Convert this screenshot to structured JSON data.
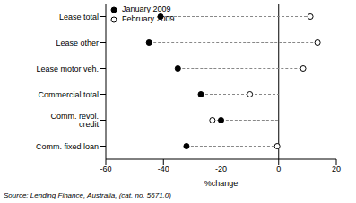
{
  "chart_data": {
    "type": "dot",
    "orientation": "horizontal",
    "categories": [
      "Comm. fixed loan",
      "Comm. revol. credit",
      "Commercial total",
      "Lease motor veh.",
      "Lease other",
      "Lease total"
    ],
    "series": [
      {
        "name": "January 2009",
        "color": "#000000",
        "marker": "filled",
        "values": [
          -32,
          -20,
          -27,
          -35,
          -45,
          -41
        ]
      },
      {
        "name": "February 2009",
        "color": "#000000",
        "marker": "hollow",
        "values": [
          -0.5,
          -23,
          -10,
          8.5,
          13.5,
          11
        ]
      }
    ],
    "xlabel": "%change",
    "xlim": [
      -60,
      20
    ],
    "xticks": [
      -60,
      -40,
      -20,
      0,
      20
    ],
    "grid": false,
    "legend": "top-left",
    "source": "Source: Lending Finance, Australia, (cat. no. 5671.0)"
  }
}
